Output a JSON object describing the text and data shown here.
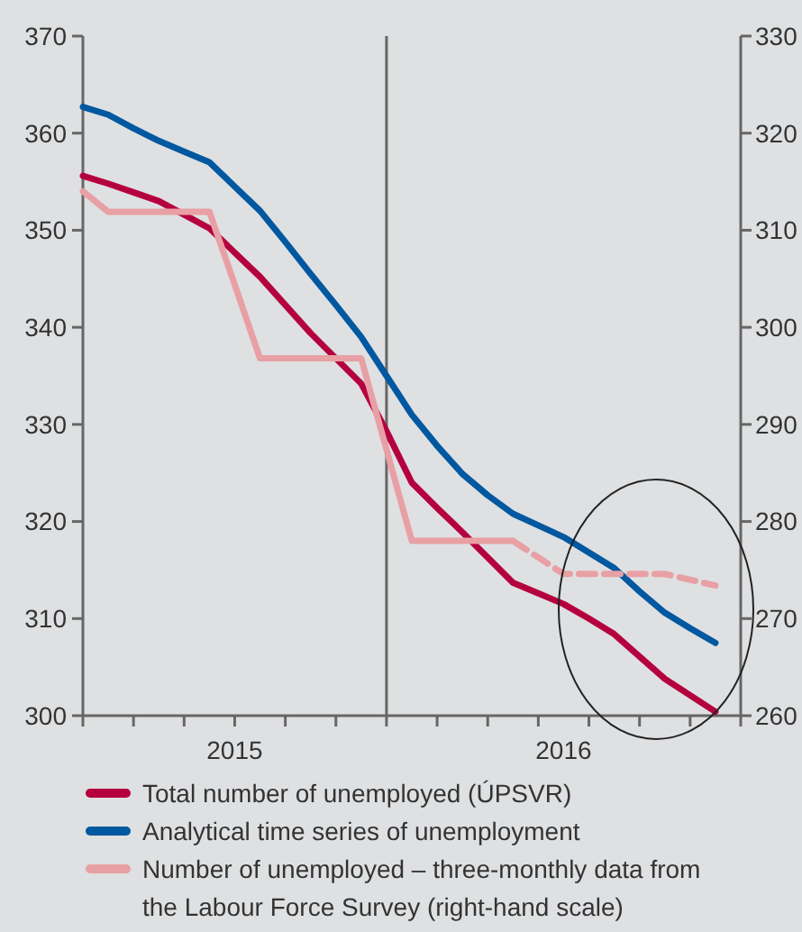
{
  "chart_data": {
    "type": "line",
    "categories": [
      null,
      null,
      null,
      null,
      null,
      null,
      "2015",
      null,
      null,
      null,
      null,
      null,
      null,
      null,
      null,
      null,
      null,
      null,
      null,
      "2016",
      null,
      null,
      null,
      null,
      null,
      null
    ],
    "ylim": [
      300,
      370
    ],
    "yticks": [
      300,
      310,
      320,
      330,
      340,
      350,
      360,
      370
    ],
    "y2lim": [
      260,
      330
    ],
    "y2ticks": [
      260,
      270,
      280,
      290,
      300,
      310,
      320,
      330
    ],
    "legend": "bottom",
    "line_style": "solid",
    "series": [
      {
        "name": "Total number of unemployed (ÚPSVR)",
        "color": "#b5003f",
        "values": [
          355.6,
          354.8,
          353.9,
          353,
          351.6,
          350.2,
          347.7,
          345.2,
          342.3,
          339.4,
          336.8,
          334.2,
          329.3,
          324,
          321.4,
          318.9,
          316.3,
          313.7,
          312.6,
          311.5,
          310,
          308.4,
          306.1,
          303.8,
          302.1,
          300.4
        ]
      },
      {
        "name": "Analytical time series of unemployment",
        "color": "#0058a0",
        "values": [
          362.7,
          361.9,
          360.5,
          359.2,
          358.1,
          357,
          354.5,
          352,
          348.8,
          345.5,
          342.3,
          339,
          335,
          331,
          327.8,
          324.9,
          322.7,
          320.8,
          319.6,
          318.4,
          316.8,
          315.2,
          312.8,
          310.6,
          309,
          307.5
        ]
      },
      {
        "name": "Number of unemployed – three-monthly data from the Labour Force Survey (right-hand scale)",
        "color": "#e8a0a4",
        "axis": "y2",
        "values": [
          314,
          311.9,
          311.9,
          311.9,
          311.9,
          311.9,
          304.4,
          296.8,
          296.8,
          296.8,
          296.8,
          296.8,
          287.4,
          278,
          278,
          278,
          278,
          278,
          null,
          null,
          null,
          null,
          null,
          null,
          null,
          null
        ]
      },
      {
        "color": "#e8a0a4",
        "axis": "y2",
        "line_style": "dashed",
        "values": [
          null,
          null,
          null,
          null,
          null,
          null,
          null,
          null,
          null,
          null,
          null,
          null,
          null,
          null,
          null,
          null,
          null,
          278,
          276.3,
          274.6,
          274.6,
          274.6,
          274.6,
          274.6,
          274,
          273.4
        ]
      }
    ]
  }
}
